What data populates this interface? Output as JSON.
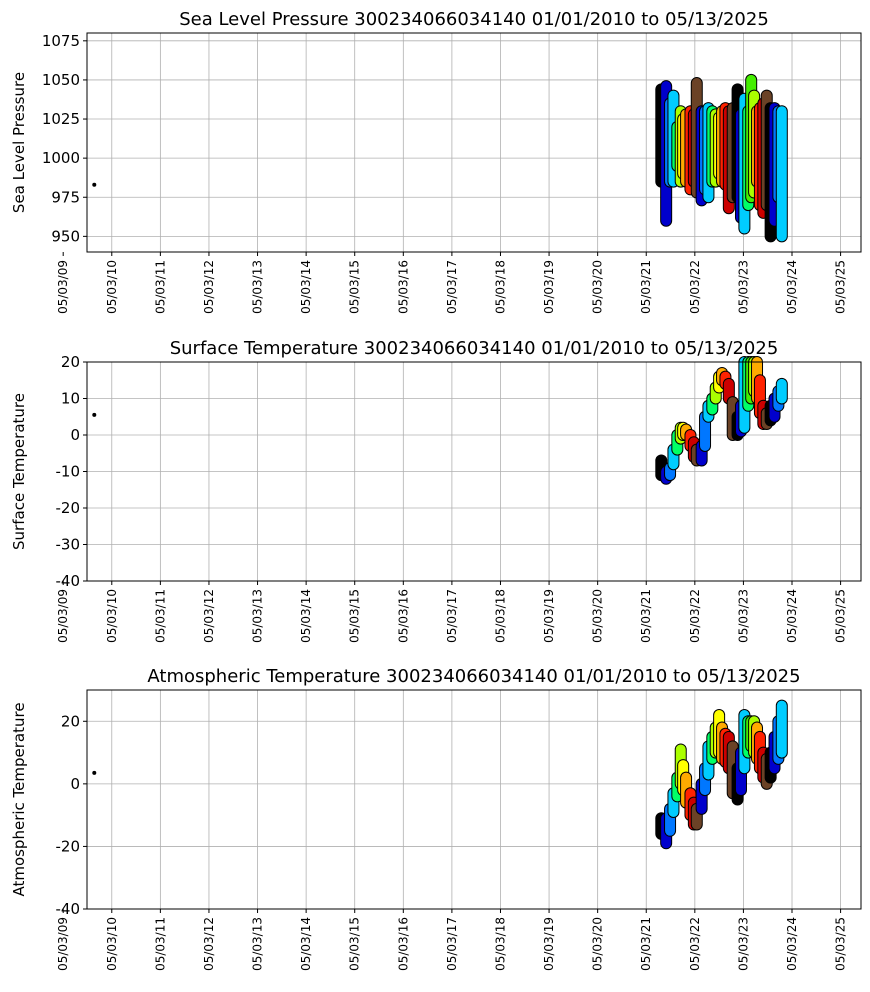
{
  "figure": {
    "background": "#ffffff"
  },
  "chart_data": [
    {
      "id": "slp",
      "type": "scatter",
      "title": "Sea Level Pressure 300234066034140  01/01/2010 to 05/13/2025",
      "xlabel": "",
      "ylabel": "Sea Level Pressure",
      "xlim": [
        2009.85,
        2025.78
      ],
      "ylim": [
        940,
        1080
      ],
      "yticks": [
        950,
        975,
        1000,
        1025,
        1050,
        1075
      ],
      "xticks": [
        2009.36,
        2010.36,
        2011.36,
        2012.36,
        2013.36,
        2014.36,
        2015.36,
        2016.36,
        2017.36,
        2018.36,
        2019.36,
        2020.36,
        2021.36,
        2022.36,
        2023.36,
        2024.36,
        2025.36
      ],
      "xtick_labels": [
        "05/03/09",
        "05/03/10",
        "05/03/11",
        "05/03/12",
        "05/03/13",
        "05/03/14",
        "05/03/15",
        "05/03/16",
        "05/03/17",
        "05/03/18",
        "05/03/19",
        "05/03/20",
        "05/03/21",
        "05/03/22",
        "05/03/23",
        "05/03/24",
        "05/03/25"
      ],
      "grid": true,
      "outlier": {
        "x": 2010.0,
        "y": 983
      },
      "bands": [
        {
          "x": 2021.67,
          "low": 985,
          "high": 1044,
          "color": "#000000"
        },
        {
          "x": 2021.77,
          "low": 960,
          "high": 1046,
          "color": "#0000cc"
        },
        {
          "x": 2021.85,
          "low": 985,
          "high": 1035,
          "color": "#0077ff"
        },
        {
          "x": 2021.92,
          "low": 985,
          "high": 1040,
          "color": "#00ccff"
        },
        {
          "x": 2022.0,
          "low": 995,
          "high": 1020,
          "color": "#00ff66"
        },
        {
          "x": 2022.07,
          "low": 985,
          "high": 1030,
          "color": "#aaff00"
        },
        {
          "x": 2022.12,
          "low": 990,
          "high": 1025,
          "color": "#ffff00"
        },
        {
          "x": 2022.18,
          "low": 985,
          "high": 1028,
          "color": "#ffaa00"
        },
        {
          "x": 2022.27,
          "low": 980,
          "high": 1030,
          "color": "#ff2200"
        },
        {
          "x": 2022.34,
          "low": 985,
          "high": 1028,
          "color": "#cc0000"
        },
        {
          "x": 2022.4,
          "low": 978,
          "high": 1048,
          "color": "#6b4226"
        },
        {
          "x": 2022.5,
          "low": 973,
          "high": 1030,
          "color": "#0000cc"
        },
        {
          "x": 2022.57,
          "low": 980,
          "high": 1030,
          "color": "#0077ff"
        },
        {
          "x": 2022.64,
          "low": 975,
          "high": 1032,
          "color": "#00ccff"
        },
        {
          "x": 2022.72,
          "low": 985,
          "high": 1030,
          "color": "#00ff66"
        },
        {
          "x": 2022.79,
          "low": 985,
          "high": 1028,
          "color": "#aaff00"
        },
        {
          "x": 2022.86,
          "low": 990,
          "high": 1026,
          "color": "#ffff00"
        },
        {
          "x": 2022.92,
          "low": 985,
          "high": 1030,
          "color": "#ffaa00"
        },
        {
          "x": 2022.99,
          "low": 983,
          "high": 1032,
          "color": "#ff2200"
        },
        {
          "x": 2023.06,
          "low": 968,
          "high": 1030,
          "color": "#cc0000"
        },
        {
          "x": 2023.14,
          "low": 975,
          "high": 1032,
          "color": "#6b4226"
        },
        {
          "x": 2023.24,
          "low": 975,
          "high": 1044,
          "color": "#000000"
        },
        {
          "x": 2023.31,
          "low": 962,
          "high": 1028,
          "color": "#0000cc"
        },
        {
          "x": 2023.38,
          "low": 955,
          "high": 1038,
          "color": "#00ccff"
        },
        {
          "x": 2023.46,
          "low": 970,
          "high": 1030,
          "color": "#00ff66"
        },
        {
          "x": 2023.52,
          "low": 975,
          "high": 1050,
          "color": "#44ee00"
        },
        {
          "x": 2023.58,
          "low": 978,
          "high": 1040,
          "color": "#aaff00"
        },
        {
          "x": 2023.64,
          "low": 985,
          "high": 1030,
          "color": "#ffaa00"
        },
        {
          "x": 2023.7,
          "low": 970,
          "high": 1032,
          "color": "#ff2200"
        },
        {
          "x": 2023.77,
          "low": 965,
          "high": 1035,
          "color": "#cc0000"
        },
        {
          "x": 2023.84,
          "low": 970,
          "high": 1040,
          "color": "#6b4226"
        },
        {
          "x": 2023.92,
          "low": 950,
          "high": 1032,
          "color": "#000000"
        },
        {
          "x": 2024.0,
          "low": 960,
          "high": 1032,
          "color": "#0000cc"
        },
        {
          "x": 2024.08,
          "low": 975,
          "high": 1030,
          "color": "#0077ff"
        },
        {
          "x": 2024.15,
          "low": 950,
          "high": 1030,
          "color": "#00ccff"
        }
      ]
    },
    {
      "id": "sst",
      "type": "scatter",
      "title": "Surface Temperature 300234066034140  01/01/2010 to 05/13/2025",
      "xlabel": "",
      "ylabel": "Surface Temperature",
      "xlim": [
        2009.85,
        2025.78
      ],
      "ylim": [
        -40,
        20
      ],
      "yticks": [
        -40,
        -30,
        -20,
        -10,
        0,
        10,
        20
      ],
      "xticks": [
        2009.36,
        2010.36,
        2011.36,
        2012.36,
        2013.36,
        2014.36,
        2015.36,
        2016.36,
        2017.36,
        2018.36,
        2019.36,
        2020.36,
        2021.36,
        2022.36,
        2023.36,
        2024.36,
        2025.36
      ],
      "xtick_labels": [
        "05/03/09",
        "05/03/10",
        "05/03/11",
        "05/03/12",
        "05/03/13",
        "05/03/14",
        "05/03/15",
        "05/03/16",
        "05/03/17",
        "05/03/18",
        "05/03/19",
        "05/03/20",
        "05/03/21",
        "05/03/22",
        "05/03/23",
        "05/03/24",
        "05/03/25"
      ],
      "grid": true,
      "outlier": {
        "x": 2010.0,
        "y": 5.5
      },
      "bands": [
        {
          "x": 2021.67,
          "low": -11,
          "high": -7,
          "color": "#000000"
        },
        {
          "x": 2021.77,
          "low": -12,
          "high": -10,
          "color": "#0000cc"
        },
        {
          "x": 2021.85,
          "low": -11,
          "high": -9,
          "color": "#0077ff"
        },
        {
          "x": 2021.92,
          "low": -8,
          "high": -4,
          "color": "#00ccff"
        },
        {
          "x": 2022.0,
          "low": -4,
          "high": 0,
          "color": "#00ff66"
        },
        {
          "x": 2022.07,
          "low": -1,
          "high": 2,
          "color": "#aaff00"
        },
        {
          "x": 2022.12,
          "low": 0,
          "high": 2,
          "color": "#ffff00"
        },
        {
          "x": 2022.18,
          "low": 0,
          "high": 1.5,
          "color": "#ffaa00"
        },
        {
          "x": 2022.27,
          "low": -3,
          "high": 0,
          "color": "#ff2200"
        },
        {
          "x": 2022.34,
          "low": -6,
          "high": -2,
          "color": "#cc0000"
        },
        {
          "x": 2022.4,
          "low": -7,
          "high": -4,
          "color": "#6b4226"
        },
        {
          "x": 2022.5,
          "low": -7,
          "high": -3,
          "color": "#0000cc"
        },
        {
          "x": 2022.57,
          "low": -3,
          "high": 5,
          "color": "#0077ff"
        },
        {
          "x": 2022.64,
          "low": 5,
          "high": 8,
          "color": "#00ccff"
        },
        {
          "x": 2022.72,
          "low": 7,
          "high": 10,
          "color": "#00ff66"
        },
        {
          "x": 2022.79,
          "low": 10,
          "high": 13,
          "color": "#aaff00"
        },
        {
          "x": 2022.86,
          "low": 13,
          "high": 16,
          "color": "#ffff00"
        },
        {
          "x": 2022.92,
          "low": 15,
          "high": 17,
          "color": "#ffaa00"
        },
        {
          "x": 2022.99,
          "low": 14,
          "high": 16,
          "color": "#ff2200"
        },
        {
          "x": 2023.06,
          "low": 10,
          "high": 14,
          "color": "#cc0000"
        },
        {
          "x": 2023.14,
          "low": 0,
          "high": 9,
          "color": "#6b4226"
        },
        {
          "x": 2023.24,
          "low": 0,
          "high": 5,
          "color": "#000000"
        },
        {
          "x": 2023.31,
          "low": 1,
          "high": 8,
          "color": "#0000cc"
        },
        {
          "x": 2023.38,
          "low": 2,
          "high": 20,
          "color": "#00ccff"
        },
        {
          "x": 2023.46,
          "low": 8,
          "high": 20,
          "color": "#00ff66"
        },
        {
          "x": 2023.52,
          "low": 10,
          "high": 20,
          "color": "#44ee00"
        },
        {
          "x": 2023.58,
          "low": 12,
          "high": 20,
          "color": "#aaff00"
        },
        {
          "x": 2023.64,
          "low": 10,
          "high": 20,
          "color": "#ffaa00"
        },
        {
          "x": 2023.7,
          "low": 6,
          "high": 15,
          "color": "#ff2200"
        },
        {
          "x": 2023.77,
          "low": 3,
          "high": 8,
          "color": "#cc0000"
        },
        {
          "x": 2023.84,
          "low": 3,
          "high": 6,
          "color": "#6b4226"
        },
        {
          "x": 2023.92,
          "low": 4,
          "high": 8,
          "color": "#000000"
        },
        {
          "x": 2024.0,
          "low": 5,
          "high": 10,
          "color": "#0000cc"
        },
        {
          "x": 2024.08,
          "low": 8,
          "high": 12,
          "color": "#0077ff"
        },
        {
          "x": 2024.15,
          "low": 10,
          "high": 14,
          "color": "#00ccff"
        }
      ]
    },
    {
      "id": "air",
      "type": "scatter",
      "title": "Atmospheric Temperature 300234066034140  01/01/2010 to 05/13/2025",
      "xlabel": "",
      "ylabel": "Atmospheric Temperature",
      "xlim": [
        2009.85,
        2025.78
      ],
      "ylim": [
        -40,
        30
      ],
      "yticks": [
        -40,
        -20,
        0,
        20
      ],
      "xticks": [
        2009.36,
        2010.36,
        2011.36,
        2012.36,
        2013.36,
        2014.36,
        2015.36,
        2016.36,
        2017.36,
        2018.36,
        2019.36,
        2020.36,
        2021.36,
        2022.36,
        2023.36,
        2024.36,
        2025.36
      ],
      "xtick_labels": [
        "05/03/09",
        "05/03/10",
        "05/03/11",
        "05/03/12",
        "05/03/13",
        "05/03/14",
        "05/03/15",
        "05/03/16",
        "05/03/17",
        "05/03/18",
        "05/03/19",
        "05/03/20",
        "05/03/21",
        "05/03/22",
        "05/03/23",
        "05/03/24",
        "05/03/25"
      ],
      "grid": true,
      "outlier": {
        "x": 2010.0,
        "y": 3.5
      },
      "bands": [
        {
          "x": 2021.67,
          "low": -16,
          "high": -11,
          "color": "#000000"
        },
        {
          "x": 2021.77,
          "low": -19,
          "high": -11,
          "color": "#0000cc"
        },
        {
          "x": 2021.85,
          "low": -15,
          "high": -8,
          "color": "#0077ff"
        },
        {
          "x": 2021.92,
          "low": -9,
          "high": -3,
          "color": "#00ccff"
        },
        {
          "x": 2022.0,
          "low": -4,
          "high": 2,
          "color": "#00ff66"
        },
        {
          "x": 2022.07,
          "low": 0,
          "high": 11,
          "color": "#aaff00"
        },
        {
          "x": 2022.12,
          "low": -2,
          "high": 6,
          "color": "#ffff00"
        },
        {
          "x": 2022.18,
          "low": -6,
          "high": 2,
          "color": "#ffaa00"
        },
        {
          "x": 2022.27,
          "low": -10,
          "high": -3,
          "color": "#ff2200"
        },
        {
          "x": 2022.34,
          "low": -13,
          "high": -6,
          "color": "#cc0000"
        },
        {
          "x": 2022.4,
          "low": -13,
          "high": -8,
          "color": "#6b4226"
        },
        {
          "x": 2022.5,
          "low": -8,
          "high": 0,
          "color": "#0000cc"
        },
        {
          "x": 2022.57,
          "low": -2,
          "high": 5,
          "color": "#0077ff"
        },
        {
          "x": 2022.64,
          "low": 3,
          "high": 12,
          "color": "#00ccff"
        },
        {
          "x": 2022.72,
          "low": 8,
          "high": 15,
          "color": "#00ff66"
        },
        {
          "x": 2022.79,
          "low": 10,
          "high": 18,
          "color": "#aaff00"
        },
        {
          "x": 2022.86,
          "low": 10,
          "high": 22,
          "color": "#ffff00"
        },
        {
          "x": 2022.92,
          "low": 8,
          "high": 18,
          "color": "#ffaa00"
        },
        {
          "x": 2022.99,
          "low": 7,
          "high": 16,
          "color": "#ff2200"
        },
        {
          "x": 2023.06,
          "low": 5,
          "high": 15,
          "color": "#cc0000"
        },
        {
          "x": 2023.14,
          "low": -3,
          "high": 12,
          "color": "#6b4226"
        },
        {
          "x": 2023.24,
          "low": -5,
          "high": 5,
          "color": "#000000"
        },
        {
          "x": 2023.31,
          "low": -2,
          "high": 10,
          "color": "#0000cc"
        },
        {
          "x": 2023.38,
          "low": 5,
          "high": 22,
          "color": "#00ccff"
        },
        {
          "x": 2023.46,
          "low": 10,
          "high": 20,
          "color": "#00ff66"
        },
        {
          "x": 2023.52,
          "low": 12,
          "high": 20,
          "color": "#44ee00"
        },
        {
          "x": 2023.58,
          "low": 10,
          "high": 20,
          "color": "#aaff00"
        },
        {
          "x": 2023.64,
          "low": 8,
          "high": 18,
          "color": "#ffaa00"
        },
        {
          "x": 2023.7,
          "low": 5,
          "high": 15,
          "color": "#ff2200"
        },
        {
          "x": 2023.77,
          "low": 2,
          "high": 10,
          "color": "#cc0000"
        },
        {
          "x": 2023.84,
          "low": 0,
          "high": 8,
          "color": "#6b4226"
        },
        {
          "x": 2023.92,
          "low": 2,
          "high": 10,
          "color": "#000000"
        },
        {
          "x": 2024.0,
          "low": 5,
          "high": 15,
          "color": "#0000cc"
        },
        {
          "x": 2024.08,
          "low": 8,
          "high": 20,
          "color": "#0077ff"
        },
        {
          "x": 2024.15,
          "low": 10,
          "high": 25,
          "color": "#00ccff"
        }
      ]
    }
  ]
}
